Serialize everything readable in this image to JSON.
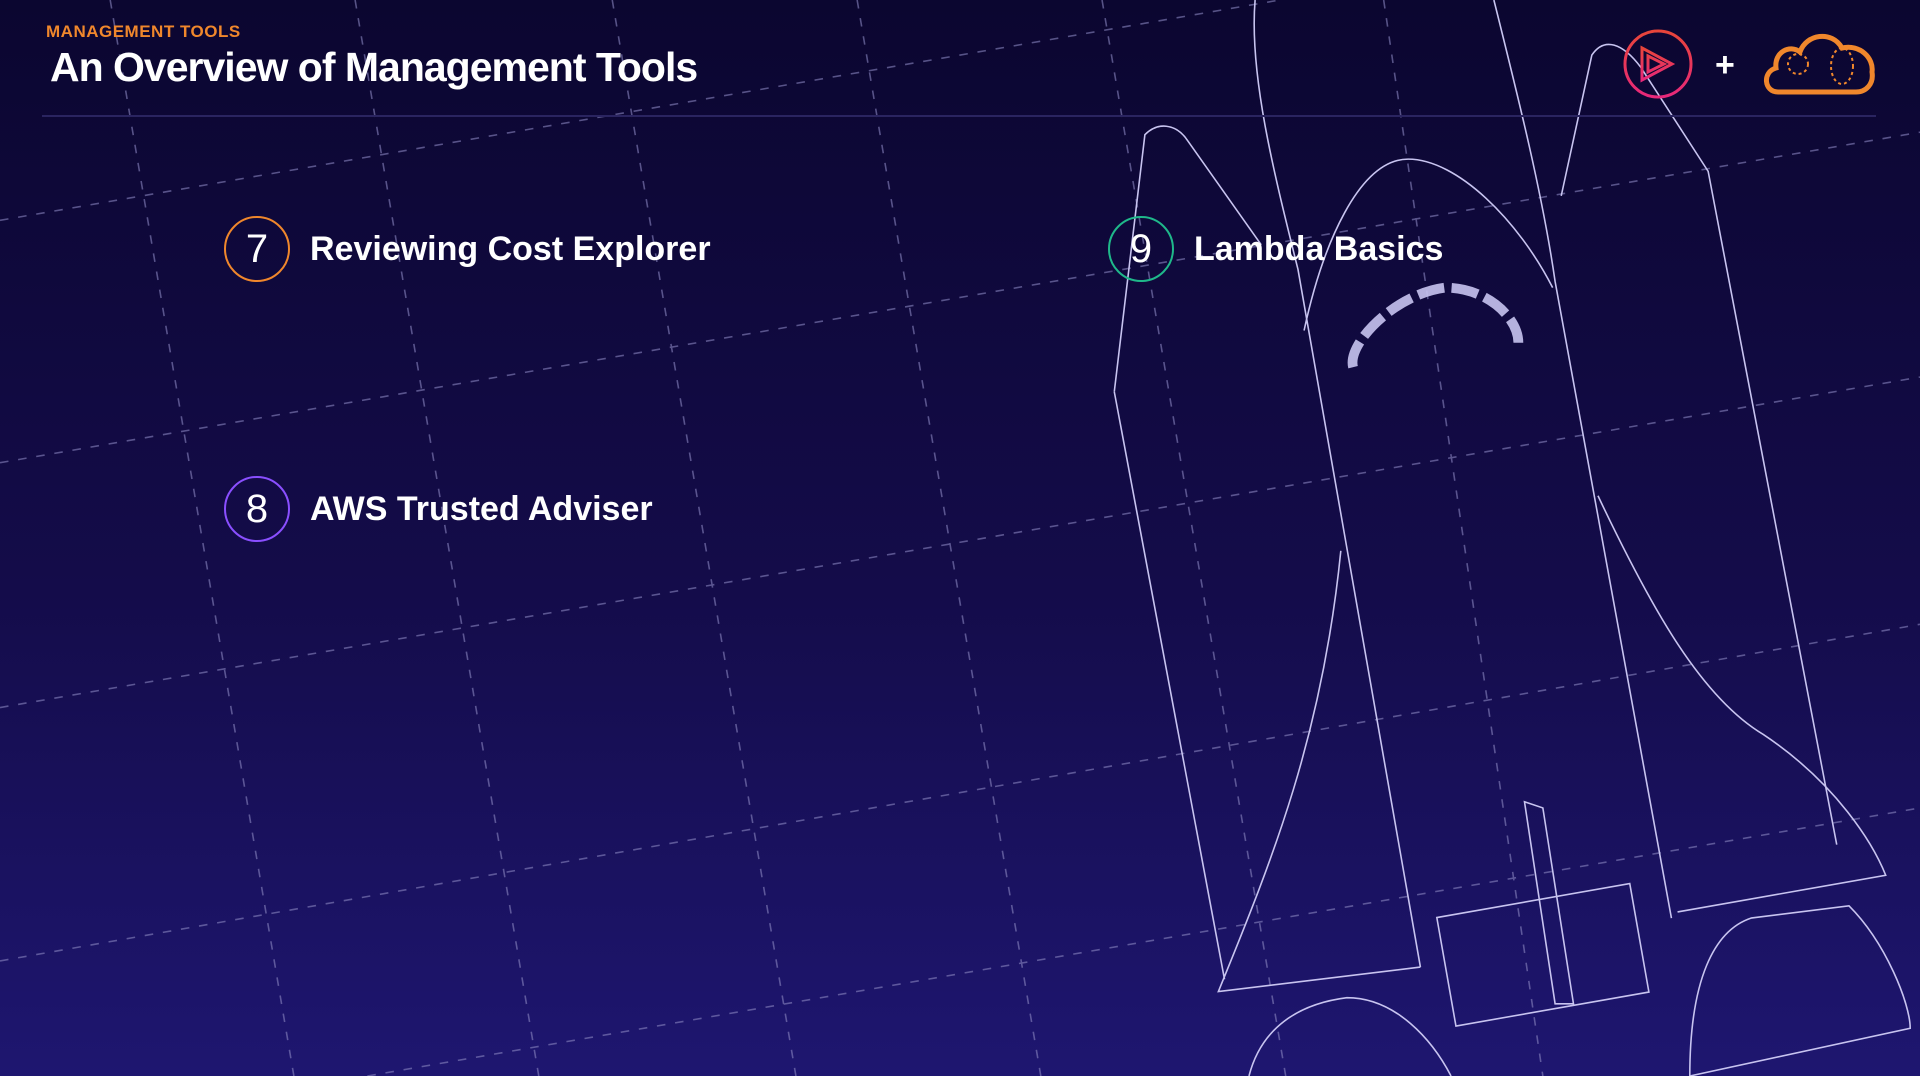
{
  "header": {
    "section": "MANAGEMENT TOOLS",
    "title": "An Overview of Management Tools"
  },
  "items": [
    {
      "number": "7",
      "label": "Reviewing Cost Explorer",
      "color": "#f0872c"
    },
    {
      "number": "8",
      "label": "AWS Trusted Adviser",
      "color": "#8a4fff"
    },
    {
      "number": "9",
      "label": "Lambda Basics",
      "color": "#1fb88a"
    }
  ],
  "logos": {
    "left": "play-circle-icon",
    "separator": "+",
    "right": "cloud-icon",
    "play_color": "#e8356a",
    "cloud_color": "#f0872c"
  },
  "colors": {
    "background": "#140c4a",
    "accent": "#f0872c"
  }
}
